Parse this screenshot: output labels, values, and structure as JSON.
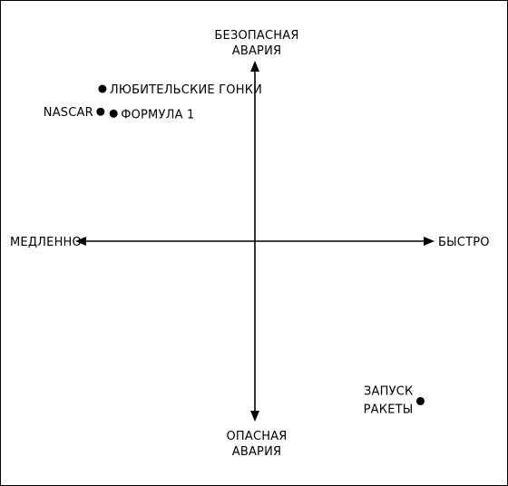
{
  "axes": {
    "y_top_label": [
      "БЕЗОПАСНАЯ",
      "АВАРИЯ"
    ],
    "y_bottom_label": [
      "ОПАСНАЯ",
      "АВАРИЯ"
    ],
    "x_left_label": "МЕДЛЕННО",
    "x_right_label": "БЫСТРО"
  },
  "points": [
    {
      "name": "amateur-racing",
      "label": [
        "ЛЮБИТЕЛЬСКИЕ ГОНКИ"
      ],
      "speed": -0.82,
      "safety": 0.8,
      "label_side": "right"
    },
    {
      "name": "nascar",
      "label": [
        "NASCAR"
      ],
      "speed": -0.83,
      "safety": 0.68,
      "label_side": "left"
    },
    {
      "name": "formula-1",
      "label": [
        "ФОРМУЛА 1"
      ],
      "speed": -0.76,
      "safety": 0.67,
      "label_side": "right"
    },
    {
      "name": "rocket-launch",
      "label": [
        "ЗАПУСК",
        "РАКЕТЫ"
      ],
      "speed": 0.89,
      "safety": -0.84,
      "label_side": "left"
    }
  ]
}
